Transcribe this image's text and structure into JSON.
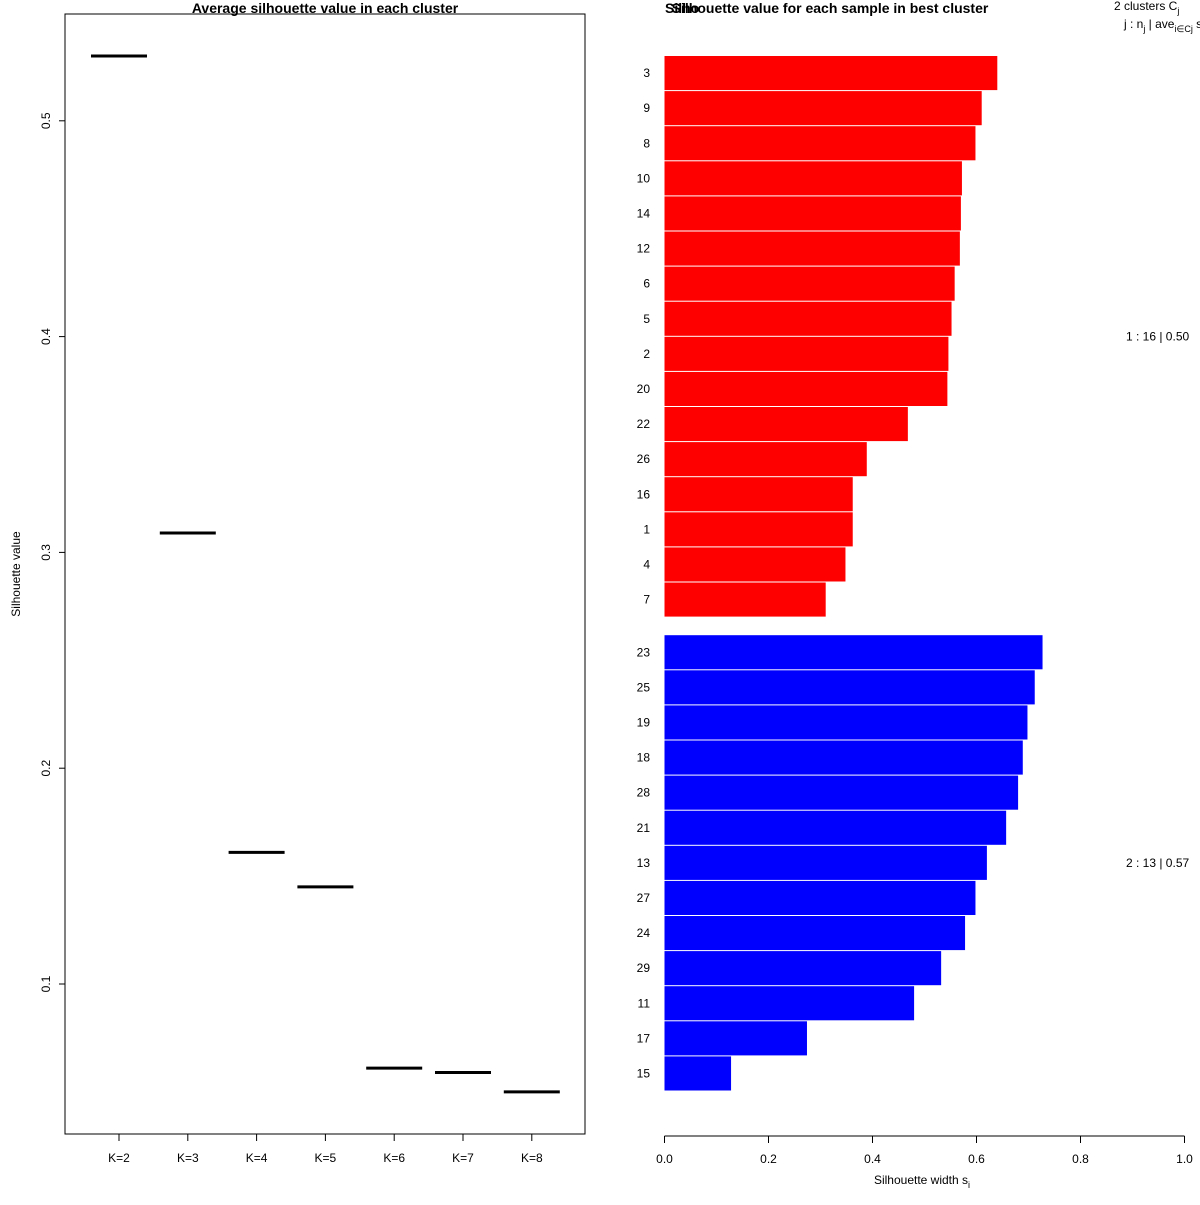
{
  "chart_data": [
    {
      "type": "line",
      "title": "Average silhouette value in each cluster",
      "xlabel": "",
      "ylabel": "Silhouette value",
      "categories": [
        "K=2",
        "K=3",
        "K=4",
        "K=5",
        "K=6",
        "K=7",
        "K=8"
      ],
      "values": [
        0.53,
        0.309,
        0.161,
        0.145,
        0.061,
        0.059,
        0.05
      ],
      "ylim": [
        0.04,
        0.535
      ],
      "yticks": [
        0.1,
        0.2,
        0.3,
        0.4,
        0.5
      ],
      "ytick_labels": [
        "0.1",
        "0.2",
        "0.3",
        "0.4",
        "0.5"
      ]
    },
    {
      "type": "bar",
      "orientation": "horizontal",
      "title": "Silhouette value for each sample in best cluster",
      "title_overlap": "Silho",
      "xlabel": "Silhouette width s",
      "xlabel_subscript": "i",
      "xlim": [
        0.0,
        1.0
      ],
      "xticks": [
        0.0,
        0.2,
        0.4,
        0.6,
        0.8,
        1.0
      ],
      "xtick_labels": [
        "0.0",
        "0.2",
        "0.4",
        "0.6",
        "0.8",
        "1.0"
      ],
      "legend_header": {
        "line1_text": "2  clusters  C",
        "line1_sub": "j",
        "line2_a": "j :  n",
        "line2_a_sub": "j",
        "line2_b": " | ave",
        "line2_b_sub": "i∈Cj",
        "line2_c": "  s"
      },
      "clusters": [
        {
          "name": "1",
          "summary": "1 :  16  |  0.50",
          "color": "#ff0000",
          "labels": [
            "3",
            "9",
            "8",
            "10",
            "14",
            "12",
            "6",
            "5",
            "2",
            "20",
            "22",
            "26",
            "16",
            "1",
            "4",
            "7"
          ],
          "values": [
            0.64,
            0.61,
            0.598,
            0.572,
            0.57,
            0.568,
            0.558,
            0.552,
            0.546,
            0.544,
            0.468,
            0.389,
            0.362,
            0.362,
            0.348,
            0.31
          ]
        },
        {
          "name": "2",
          "summary": "2 :  13  |  0.57",
          "color": "#0000ff",
          "labels": [
            "23",
            "25",
            "19",
            "18",
            "28",
            "21",
            "13",
            "27",
            "24",
            "29",
            "11",
            "17",
            "15"
          ],
          "values": [
            0.727,
            0.712,
            0.698,
            0.689,
            0.68,
            0.657,
            0.62,
            0.598,
            0.578,
            0.532,
            0.48,
            0.274,
            0.128
          ]
        }
      ]
    }
  ]
}
